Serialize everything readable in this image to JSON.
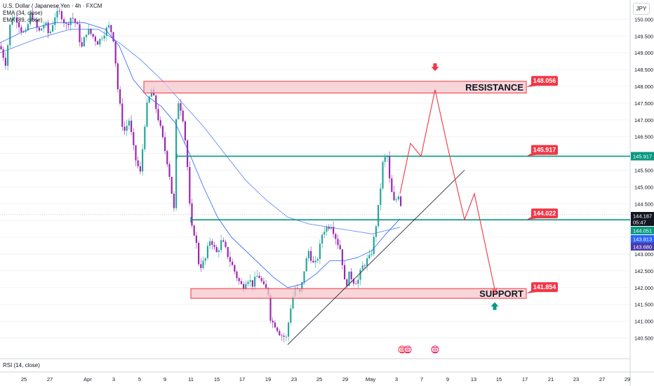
{
  "header": {
    "symbol_line": "U.S. Dollar / Japanese Yen · 4h · FXCM",
    "ema1_label": "EMA (34, close)",
    "ema2_label": "EMA (89, close)",
    "currency": "JPY",
    "rsi_label": "RSI (14, close)"
  },
  "colors": {
    "bull": "#26a69a",
    "bear": "#9c27b0",
    "zone_fill": "#f4c7cc",
    "zone_stroke": "#f23645",
    "teal_line": "#089981",
    "ema": "#2962ff",
    "forecast": "#f23645",
    "trend": "#131722",
    "price_tag": "#131722",
    "ema34_tag": "#2962ff",
    "ema89_tag": "#4a3aa8"
  },
  "chart_data": {
    "type": "candlestick",
    "yaxis": {
      "ticks": [
        140.5,
        141.0,
        141.5,
        142.0,
        142.5,
        143.0,
        143.5,
        144.0,
        144.5,
        145.0,
        145.5,
        146.0,
        146.5,
        147.0,
        147.5,
        148.0,
        148.5,
        149.0,
        149.5,
        150.0
      ]
    },
    "xaxis": {
      "ticks": [
        "25",
        "27",
        "Apr",
        "3",
        "5",
        "9",
        "11",
        "15",
        "17",
        "19",
        "23",
        "25",
        "29",
        "May",
        "3",
        "7",
        "9",
        "13",
        "15",
        "17",
        "21",
        "23",
        "27",
        "29"
      ]
    },
    "zones": [
      {
        "name": "resistance",
        "label": "RESISTANCE",
        "top": 148.15,
        "bottom": 147.8,
        "callout": "148.056"
      },
      {
        "name": "support",
        "label": "SUPPORT",
        "top": 141.97,
        "bottom": 141.68,
        "callout": "141.854"
      }
    ],
    "levels": [
      {
        "name": "upper-level",
        "value": 145.917,
        "callout": "145.917"
      },
      {
        "name": "lower-level",
        "value": 144.022,
        "callout": "144.022"
      }
    ],
    "price_tags": [
      {
        "name": "last-price",
        "value": "144.187",
        "sub": "05:47"
      },
      {
        "name": "ema34",
        "value": "144.051"
      },
      {
        "name": "ema89",
        "value": "143.813"
      },
      {
        "name": "extra",
        "value": "143.680"
      }
    ],
    "level_tag": "145.917",
    "anchors": [
      [
        0,
        149.2
      ],
      [
        8,
        148.7
      ],
      [
        16,
        150.1
      ],
      [
        24,
        150.0
      ],
      [
        30,
        149.7
      ],
      [
        36,
        149.5
      ],
      [
        44,
        150.2
      ],
      [
        55,
        149.6
      ],
      [
        64,
        149.9
      ],
      [
        70,
        149.5
      ],
      [
        78,
        150.1
      ],
      [
        86,
        150.2
      ],
      [
        94,
        149.8
      ],
      [
        102,
        150.1
      ],
      [
        110,
        149.8
      ],
      [
        116,
        149.1
      ],
      [
        124,
        149.7
      ],
      [
        132,
        149.5
      ],
      [
        140,
        149.3
      ],
      [
        148,
        149.6
      ],
      [
        156,
        149.8
      ],
      [
        162,
        149.4
      ],
      [
        168,
        147.9
      ],
      [
        176,
        146.6
      ],
      [
        184,
        147.0
      ],
      [
        192,
        145.9
      ],
      [
        200,
        145.4
      ],
      [
        208,
        147.3
      ],
      [
        216,
        147.9
      ],
      [
        224,
        147.2
      ],
      [
        232,
        146.4
      ],
      [
        240,
        145.6
      ],
      [
        248,
        144.3
      ],
      [
        252,
        147.7
      ],
      [
        260,
        147.2
      ],
      [
        266,
        146.0
      ],
      [
        272,
        143.8
      ],
      [
        278,
        143.6
      ],
      [
        284,
        142.6
      ],
      [
        292,
        142.8
      ],
      [
        300,
        143.5
      ],
      [
        308,
        143.0
      ],
      [
        316,
        143.4
      ],
      [
        324,
        143.0
      ],
      [
        332,
        142.6
      ],
      [
        340,
        142.2
      ],
      [
        346,
        142.0
      ],
      [
        352,
        142.3
      ],
      [
        360,
        142.1
      ],
      [
        368,
        142.4
      ],
      [
        376,
        142.0
      ],
      [
        382,
        141.9
      ],
      [
        386,
        141.0
      ],
      [
        392,
        140.9
      ],
      [
        400,
        140.6
      ],
      [
        408,
        140.5
      ],
      [
        414,
        141.4
      ],
      [
        420,
        142.0
      ],
      [
        428,
        141.8
      ],
      [
        434,
        142.6
      ],
      [
        440,
        143.1
      ],
      [
        448,
        142.6
      ],
      [
        454,
        143.0
      ],
      [
        460,
        143.7
      ],
      [
        466,
        143.8
      ],
      [
        472,
        143.9
      ],
      [
        480,
        143.4
      ],
      [
        486,
        143.1
      ],
      [
        492,
        142.0
      ],
      [
        498,
        142.4
      ],
      [
        504,
        142.2
      ],
      [
        510,
        142.2
      ],
      [
        516,
        142.6
      ],
      [
        522,
        142.8
      ],
      [
        528,
        142.9
      ],
      [
        534,
        143.6
      ],
      [
        540,
        144.5
      ],
      [
        546,
        145.8
      ],
      [
        552,
        145.9
      ],
      [
        556,
        145.0
      ],
      [
        562,
        144.5
      ],
      [
        568,
        144.8
      ],
      [
        574,
        144.2
      ]
    ],
    "ema34": [
      [
        0,
        149.3
      ],
      [
        40,
        149.7
      ],
      [
        80,
        149.9
      ],
      [
        120,
        149.9
      ],
      [
        150,
        149.7
      ],
      [
        170,
        149.2
      ],
      [
        190,
        148.2
      ],
      [
        210,
        147.7
      ],
      [
        230,
        147.4
      ],
      [
        250,
        146.9
      ],
      [
        270,
        146.0
      ],
      [
        290,
        145.0
      ],
      [
        310,
        144.1
      ],
      [
        330,
        143.5
      ],
      [
        350,
        143.1
      ],
      [
        370,
        142.7
      ],
      [
        390,
        142.3
      ],
      [
        410,
        142.0
      ],
      [
        430,
        142.1
      ],
      [
        450,
        142.4
      ],
      [
        470,
        142.8
      ],
      [
        490,
        142.8
      ],
      [
        510,
        142.9
      ],
      [
        530,
        143.1
      ],
      [
        550,
        143.6
      ],
      [
        570,
        144.05
      ]
    ],
    "ema89": [
      [
        0,
        149.0
      ],
      [
        50,
        149.4
      ],
      [
        100,
        149.7
      ],
      [
        140,
        149.7
      ],
      [
        170,
        149.3
      ],
      [
        200,
        148.8
      ],
      [
        230,
        148.2
      ],
      [
        260,
        147.5
      ],
      [
        290,
        146.8
      ],
      [
        320,
        146.0
      ],
      [
        350,
        145.2
      ],
      [
        380,
        144.6
      ],
      [
        410,
        144.1
      ],
      [
        440,
        143.9
      ],
      [
        470,
        143.8
      ],
      [
        500,
        143.7
      ],
      [
        530,
        143.6
      ],
      [
        550,
        143.7
      ],
      [
        570,
        143.8
      ]
    ],
    "trendline": [
      [
        410,
        140.3
      ],
      [
        662,
        145.5
      ]
    ],
    "forecast": [
      [
        570,
        144.8
      ],
      [
        585,
        146.3
      ],
      [
        600,
        145.917
      ],
      [
        620,
        147.9
      ],
      [
        640,
        146.0
      ],
      [
        662,
        144.022
      ],
      [
        676,
        144.8
      ],
      [
        706,
        141.85
      ]
    ],
    "arrows": [
      {
        "name": "resistance-arrow",
        "x": 620,
        "value": 148.56,
        "dir": "down"
      },
      {
        "name": "support-arrow",
        "x": 705,
        "value": 141.46,
        "dir": "up"
      }
    ]
  }
}
